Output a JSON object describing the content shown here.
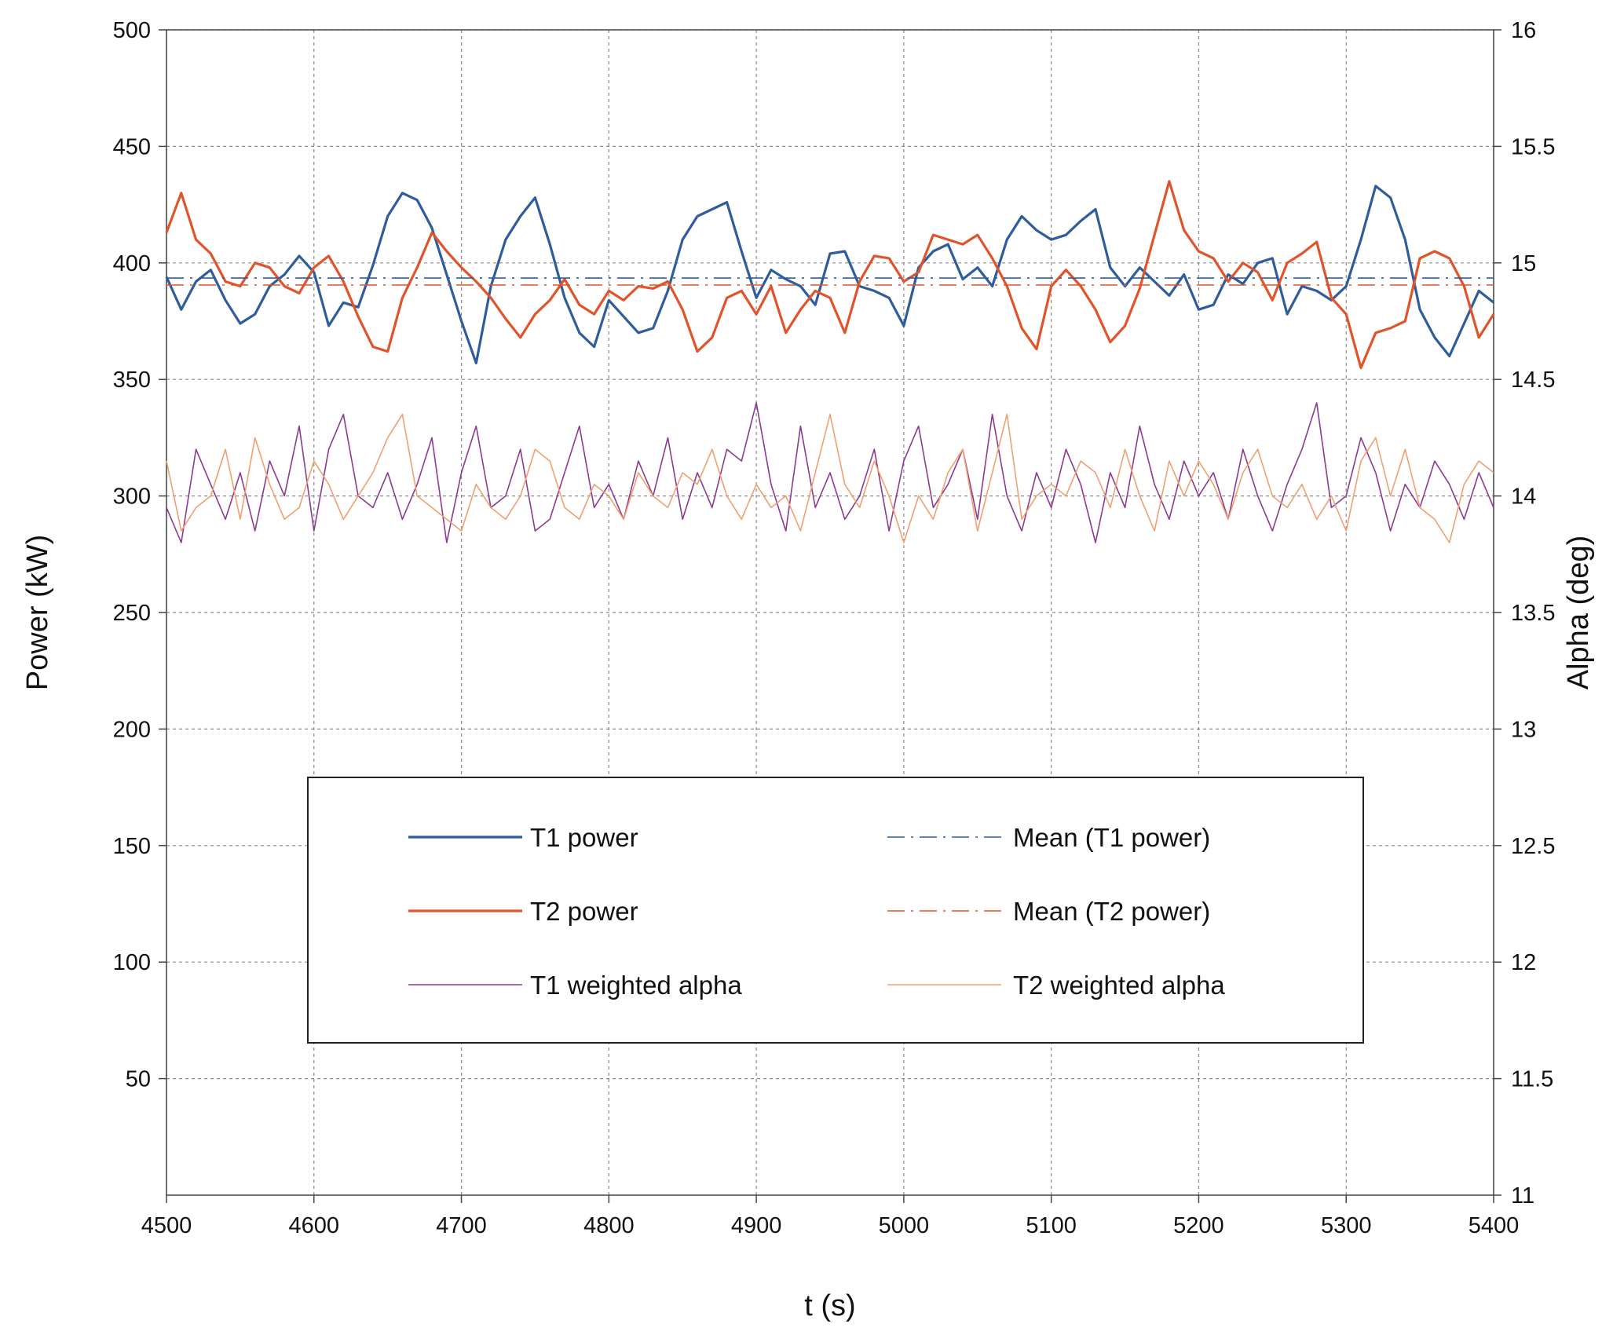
{
  "chart_data": {
    "type": "line",
    "title": "",
    "xlabel": "t (s)",
    "ylabel": "Power (kW)",
    "y2label": "Alpha (deg)",
    "xlim": [
      4500,
      5400
    ],
    "ylim": [
      0,
      500
    ],
    "y2lim": [
      11,
      16
    ],
    "x_ticks": [
      "4500",
      "4600",
      "4700",
      "4800",
      "4900",
      "5000",
      "5100",
      "5200",
      "5300",
      "5400"
    ],
    "y_ticks": [
      "50",
      "100",
      "150",
      "200",
      "250",
      "300",
      "350",
      "400",
      "450",
      "500"
    ],
    "y2_ticks": [
      "11",
      "11.5",
      "12",
      "12.5",
      "13",
      "13.5",
      "14",
      "14.5",
      "15",
      "15.5",
      "16"
    ],
    "grid": true,
    "legend_position": "lower-center",
    "series": [
      {
        "name": "T1 power",
        "axis": "left",
        "style": "solid-thick",
        "color": "#2f5d9b",
        "x": [
          4500,
          4510,
          4520,
          4530,
          4540,
          4550,
          4560,
          4570,
          4580,
          4590,
          4600,
          4610,
          4620,
          4630,
          4640,
          4650,
          4660,
          4670,
          4680,
          4690,
          4700,
          4710,
          4720,
          4730,
          4740,
          4750,
          4760,
          4770,
          4780,
          4790,
          4800,
          4810,
          4820,
          4830,
          4840,
          4850,
          4860,
          4870,
          4880,
          4890,
          4900,
          4910,
          4920,
          4930,
          4940,
          4950,
          4960,
          4970,
          4980,
          4990,
          5000,
          5010,
          5020,
          5030,
          5040,
          5050,
          5060,
          5070,
          5080,
          5090,
          5100,
          5110,
          5120,
          5130,
          5140,
          5150,
          5160,
          5170,
          5180,
          5190,
          5200,
          5210,
          5220,
          5230,
          5240,
          5250,
          5260,
          5270,
          5280,
          5290,
          5300,
          5310,
          5320,
          5330,
          5340,
          5350,
          5360,
          5370,
          5380,
          5390,
          5400
        ],
        "values": [
          394,
          380,
          392,
          397,
          384,
          374,
          378,
          390,
          395,
          403,
          396,
          373,
          383,
          381,
          399,
          420,
          430,
          427,
          415,
          395,
          375,
          357,
          390,
          410,
          420,
          428,
          408,
          385,
          370,
          364,
          384,
          377,
          370,
          372,
          388,
          410,
          420,
          423,
          426,
          405,
          385,
          397,
          393,
          390,
          382,
          404,
          405,
          390,
          388,
          385,
          373,
          398,
          405,
          408,
          393,
          398,
          390,
          410,
          420,
          414,
          410,
          412,
          418,
          423,
          398,
          390,
          398,
          392,
          386,
          395,
          380,
          382,
          395,
          391,
          400,
          402,
          378,
          390,
          388,
          384,
          390,
          410,
          433,
          428,
          410,
          380,
          368,
          360,
          374,
          388,
          383
        ]
      },
      {
        "name": "T2 power",
        "axis": "left",
        "style": "solid-thick",
        "color": "#e0532b",
        "x": [
          4500,
          4510,
          4520,
          4530,
          4540,
          4550,
          4560,
          4570,
          4580,
          4590,
          4600,
          4610,
          4620,
          4630,
          4640,
          4650,
          4660,
          4670,
          4680,
          4690,
          4700,
          4710,
          4720,
          4730,
          4740,
          4750,
          4760,
          4770,
          4780,
          4790,
          4800,
          4810,
          4820,
          4830,
          4840,
          4850,
          4860,
          4870,
          4880,
          4890,
          4900,
          4910,
          4920,
          4930,
          4940,
          4950,
          4960,
          4970,
          4980,
          4990,
          5000,
          5010,
          5020,
          5030,
          5040,
          5050,
          5060,
          5070,
          5080,
          5090,
          5100,
          5110,
          5120,
          5130,
          5140,
          5150,
          5160,
          5170,
          5180,
          5190,
          5200,
          5210,
          5220,
          5230,
          5240,
          5250,
          5260,
          5270,
          5280,
          5290,
          5300,
          5310,
          5320,
          5330,
          5340,
          5350,
          5360,
          5370,
          5380,
          5390,
          5400
        ],
        "values": [
          413,
          430,
          410,
          404,
          392,
          390,
          400,
          398,
          390,
          387,
          398,
          403,
          392,
          377,
          364,
          362,
          385,
          398,
          413,
          405,
          398,
          392,
          385,
          376,
          368,
          378,
          384,
          393,
          382,
          378,
          388,
          384,
          390,
          389,
          392,
          380,
          362,
          368,
          385,
          388,
          378,
          390,
          370,
          380,
          388,
          385,
          370,
          392,
          403,
          402,
          392,
          396,
          412,
          410,
          408,
          412,
          402,
          390,
          372,
          363,
          390,
          397,
          390,
          380,
          366,
          373,
          389,
          412,
          435,
          414,
          405,
          402,
          392,
          400,
          396,
          384,
          400,
          404,
          409,
          385,
          378,
          355,
          370,
          372,
          375,
          402,
          405,
          402,
          390,
          368,
          378
        ]
      },
      {
        "name": "Mean (T1 power)",
        "axis": "left",
        "style": "dash-dot",
        "color": "#2f5d9b",
        "x": [
          4500,
          5400
        ],
        "values": [
          393.5,
          393.5
        ]
      },
      {
        "name": "Mean (T2 power)",
        "axis": "left",
        "style": "dash-dot",
        "color": "#e0532b",
        "x": [
          4500,
          5400
        ],
        "values": [
          390.5,
          390.5
        ]
      },
      {
        "name": "T1 weighted alpha",
        "axis": "right",
        "style": "solid-thin",
        "color": "#8b3a8f",
        "x": [
          4500,
          4510,
          4520,
          4530,
          4540,
          4550,
          4560,
          4570,
          4580,
          4590,
          4600,
          4610,
          4620,
          4630,
          4640,
          4650,
          4660,
          4670,
          4680,
          4690,
          4700,
          4710,
          4720,
          4730,
          4740,
          4750,
          4760,
          4770,
          4780,
          4790,
          4800,
          4810,
          4820,
          4830,
          4840,
          4850,
          4860,
          4870,
          4880,
          4890,
          4900,
          4910,
          4920,
          4930,
          4940,
          4950,
          4960,
          4970,
          4980,
          4990,
          5000,
          5010,
          5020,
          5030,
          5040,
          5050,
          5060,
          5070,
          5080,
          5090,
          5100,
          5110,
          5120,
          5130,
          5140,
          5150,
          5160,
          5170,
          5180,
          5190,
          5200,
          5210,
          5220,
          5230,
          5240,
          5250,
          5260,
          5270,
          5280,
          5290,
          5300,
          5310,
          5320,
          5330,
          5340,
          5350,
          5360,
          5370,
          5380,
          5390,
          5400
        ],
        "values": [
          13.95,
          13.8,
          14.2,
          14.05,
          13.9,
          14.1,
          13.85,
          14.15,
          14.0,
          14.3,
          13.85,
          14.2,
          14.35,
          14.0,
          13.95,
          14.1,
          13.9,
          14.05,
          14.25,
          13.8,
          14.1,
          14.3,
          13.95,
          14.0,
          14.2,
          13.85,
          13.9,
          14.1,
          14.3,
          13.95,
          14.05,
          13.9,
          14.15,
          14.0,
          14.25,
          13.9,
          14.1,
          13.95,
          14.2,
          14.15,
          14.4,
          14.05,
          13.85,
          14.3,
          13.95,
          14.1,
          13.9,
          14.0,
          14.2,
          13.85,
          14.15,
          14.3,
          13.95,
          14.05,
          14.2,
          13.9,
          14.35,
          14.0,
          13.85,
          14.1,
          13.95,
          14.2,
          14.05,
          13.8,
          14.1,
          13.95,
          14.3,
          14.05,
          13.9,
          14.15,
          14.0,
          14.1,
          13.9,
          14.2,
          14.0,
          13.85,
          14.05,
          14.2,
          14.4,
          13.95,
          14.0,
          14.25,
          14.1,
          13.85,
          14.05,
          13.95,
          14.15,
          14.05,
          13.9,
          14.1,
          13.95
        ]
      },
      {
        "name": "T2 weighted alpha",
        "axis": "right",
        "style": "solid-thin",
        "color": "#f0a070",
        "x": [
          4500,
          4510,
          4520,
          4530,
          4540,
          4550,
          4560,
          4570,
          4580,
          4590,
          4600,
          4610,
          4620,
          4630,
          4640,
          4650,
          4660,
          4670,
          4680,
          4690,
          4700,
          4710,
          4720,
          4730,
          4740,
          4750,
          4760,
          4770,
          4780,
          4790,
          4800,
          4810,
          4820,
          4830,
          4840,
          4850,
          4860,
          4870,
          4880,
          4890,
          4900,
          4910,
          4920,
          4930,
          4940,
          4950,
          4960,
          4970,
          4980,
          4990,
          5000,
          5010,
          5020,
          5030,
          5040,
          5050,
          5060,
          5070,
          5080,
          5090,
          5100,
          5110,
          5120,
          5130,
          5140,
          5150,
          5160,
          5170,
          5180,
          5190,
          5200,
          5210,
          5220,
          5230,
          5240,
          5250,
          5260,
          5270,
          5280,
          5290,
          5300,
          5310,
          5320,
          5330,
          5340,
          5350,
          5360,
          5370,
          5380,
          5390,
          5400
        ],
        "values": [
          14.15,
          13.85,
          13.95,
          14.0,
          14.2,
          13.9,
          14.25,
          14.05,
          13.9,
          13.95,
          14.15,
          14.05,
          13.9,
          14.0,
          14.1,
          14.25,
          14.35,
          14.0,
          13.95,
          13.9,
          13.85,
          14.05,
          13.95,
          13.9,
          14.0,
          14.2,
          14.15,
          13.95,
          13.9,
          14.05,
          14.0,
          13.9,
          14.1,
          14.0,
          13.95,
          14.1,
          14.05,
          14.2,
          14.0,
          13.9,
          14.05,
          13.95,
          14.0,
          13.85,
          14.1,
          14.35,
          14.05,
          13.95,
          14.15,
          14.0,
          13.8,
          14.0,
          13.9,
          14.1,
          14.2,
          13.85,
          14.1,
          14.35,
          13.9,
          14.0,
          14.05,
          14.0,
          14.15,
          14.1,
          13.95,
          14.2,
          14.0,
          13.85,
          14.15,
          14.0,
          14.15,
          14.05,
          13.9,
          14.1,
          14.2,
          14.0,
          13.95,
          14.05,
          13.9,
          14.0,
          13.85,
          14.15,
          14.25,
          14.0,
          14.2,
          13.95,
          13.9,
          13.8,
          14.05,
          14.15,
          14.1
        ]
      }
    ]
  }
}
